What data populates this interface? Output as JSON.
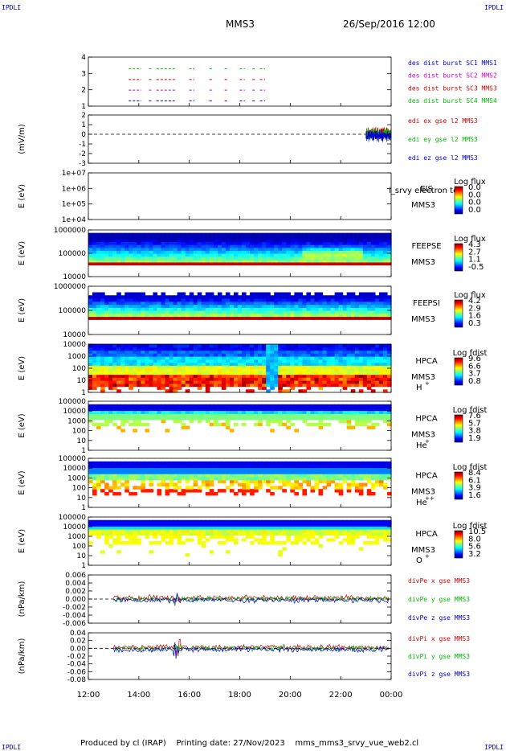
{
  "header": {
    "corner_label": "IPDLI",
    "spacecraft": "MMS3",
    "datetime": "26/Sep/2016 12:00"
  },
  "footer": {
    "produced_by": "Produced by cl (IRAP)",
    "printing_date": "Printing date: 27/Nov/2023",
    "script_name": "mms_mms3_srvy_vue_web2.cl"
  },
  "chart_data": {
    "type": "heatmap",
    "x_ticks": [
      "12:00",
      "14:00",
      "16:00",
      "18:00",
      "20:00",
      "22:00",
      "00:00"
    ],
    "x_range_hours": [
      12,
      24
    ],
    "panels": [
      {
        "id": "burst",
        "type": "timeline",
        "y_ticks": [
          "4",
          "3",
          "2",
          "1"
        ],
        "labels": [
          {
            "text": "des dist burst SC1 MMS1",
            "color": "#0000cc"
          },
          {
            "text": "des dist burst SC2 MMS2",
            "color": "#cc00cc"
          },
          {
            "text": "des dist burst SC3 MMS3",
            "color": "#cc0000"
          },
          {
            "text": "des dist burst SC4 MMS4",
            "color": "#00bb00"
          }
        ],
        "rows": [
          {
            "level": 4,
            "color": "#00bb00"
          },
          {
            "level": 3,
            "color": "#cc0000"
          },
          {
            "level": 2,
            "color": "#cc00cc"
          },
          {
            "level": 1,
            "color": "#0000cc"
          }
        ],
        "intervals": [
          [
            13.6,
            14.1
          ],
          [
            14.4,
            14.5
          ],
          [
            14.7,
            15.5
          ],
          [
            16.0,
            16.2
          ],
          [
            16.8,
            16.9
          ],
          [
            17.4,
            17.5
          ],
          [
            18.0,
            18.2
          ],
          [
            18.5,
            18.6
          ],
          [
            18.8,
            19.0
          ]
        ]
      },
      {
        "id": "edi",
        "type": "line",
        "ylabel": "(mV/m)",
        "y_ticks": [
          "2",
          "1",
          "0",
          "-1",
          "-2",
          "-3"
        ],
        "ylim": [
          -3,
          2
        ],
        "labels": [
          {
            "text": "edi ex gse l2 MMS3",
            "color": "#cc0000"
          },
          {
            "text": "edi ey gse l2 MMS3",
            "color": "#00bb00"
          },
          {
            "text": "edi ez gse l2 MMS3",
            "color": "#0000cc"
          }
        ],
        "active_range": [
          23.0,
          24.0
        ]
      },
      {
        "id": "eis",
        "type": "empty",
        "ylabel": "E (eV)",
        "y_ticks": [
          "1e+07",
          "1e+06",
          "1e+05",
          "1e+04"
        ],
        "side": [
          "EIS",
          "MMS3"
        ],
        "side_extra": "i_srvy electron to",
        "cbar": {
          "title": "Log flux",
          "ticks": [
            "0.0",
            "0.0",
            "0.0",
            "0.0"
          ]
        }
      },
      {
        "id": "feepse",
        "type": "spectrogram",
        "ylabel": "E (eV)",
        "y_ticks": [
          "1000000",
          "100000",
          "10000"
        ],
        "side": [
          "FEEPSE",
          "MMS3"
        ],
        "cbar": {
          "title": "Log flux",
          "ticks": [
            "4.3",
            "2.7",
            "1.1",
            "-0.5"
          ]
        }
      },
      {
        "id": "feepsi",
        "type": "spectrogram",
        "ylabel": "E (eV)",
        "y_ticks": [
          "1000000",
          "100000",
          "10000"
        ],
        "side": [
          "FEEPSI",
          "MMS3"
        ],
        "cbar": {
          "title": "Log flux",
          "ticks": [
            "4.2",
            "2.9",
            "1.6",
            "0.3"
          ]
        }
      },
      {
        "id": "hpca_h",
        "type": "spectrogram",
        "ylabel": "E (eV)",
        "y_ticks": [
          "10000",
          "1000",
          "100",
          "10",
          "1"
        ],
        "side": [
          "HPCA",
          "MMS3"
        ],
        "species": "H",
        "charge": "+",
        "cbar": {
          "title": "Log fdist",
          "ticks": [
            "9.6",
            "6.6",
            "3.7",
            "0.8"
          ]
        }
      },
      {
        "id": "hpca_he",
        "type": "spectrogram",
        "ylabel": "E (eV)",
        "y_ticks": [
          "100000",
          "10000",
          "1000",
          "100",
          "10",
          "1"
        ],
        "side": [
          "HPCA",
          "MMS3"
        ],
        "species": "He",
        "charge": "+",
        "cbar": {
          "title": "Log fdist",
          "ticks": [
            "7.6",
            "5.7",
            "3.8",
            "1.9"
          ]
        }
      },
      {
        "id": "hpca_hepp",
        "type": "spectrogram",
        "ylabel": "E (eV)",
        "y_ticks": [
          "100000",
          "10000",
          "1000",
          "100",
          "10",
          "1"
        ],
        "side": [
          "HPCA",
          "MMS3"
        ],
        "species": "He",
        "charge": "++",
        "cbar": {
          "title": "Log fdist",
          "ticks": [
            "8.4",
            "6.1",
            "3.9",
            "1.6"
          ]
        }
      },
      {
        "id": "hpca_o",
        "type": "spectrogram",
        "ylabel": "E (eV)",
        "y_ticks": [
          "100000",
          "10000",
          "1000",
          "100",
          "10",
          "1"
        ],
        "side": [
          "HPCA",
          "MMS3"
        ],
        "species": "O",
        "charge": "+",
        "cbar": {
          "title": "Log fdist",
          "ticks": [
            "10.5",
            "8.0",
            "5.6",
            "3.2"
          ]
        }
      },
      {
        "id": "divpe",
        "type": "line",
        "ylabel": "(nPa/km)",
        "y_ticks": [
          "0.006",
          "0.004",
          "0.002",
          "0.000",
          "-0.002",
          "-0.004",
          "-0.006"
        ],
        "ylim": [
          -0.007,
          0.007
        ],
        "labels": [
          {
            "text": "divPe x gse MMS3",
            "color": "#cc0000"
          },
          {
            "text": "divPe y gse MMS3",
            "color": "#00bb00"
          },
          {
            "text": "divPe z gse MMS3",
            "color": "#0000cc"
          }
        ],
        "active_range": [
          13.0,
          23.9
        ]
      },
      {
        "id": "divpi",
        "type": "line",
        "ylabel": "(nPa/km)",
        "y_ticks": [
          "0.04",
          "0.02",
          "0.00",
          "-0.02",
          "-0.04",
          "-0.06",
          "-0.08"
        ],
        "ylim": [
          -0.09,
          0.045
        ],
        "labels": [
          {
            "text": "divPi x gse MMS3",
            "color": "#cc0000"
          },
          {
            "text": "divPi y gse MMS3",
            "color": "#00bb00"
          },
          {
            "text": "divPi z gse MMS3",
            "color": "#0000cc"
          }
        ],
        "active_range": [
          13.0,
          23.9
        ]
      }
    ]
  }
}
